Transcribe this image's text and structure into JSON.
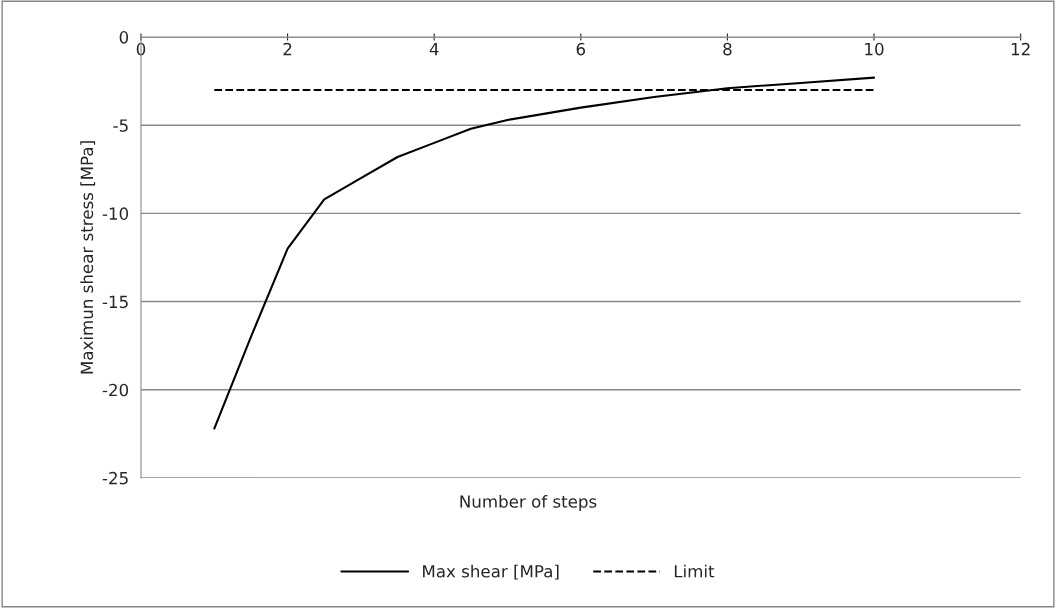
{
  "chart_data": {
    "type": "line",
    "xlabel": "Number of steps",
    "ylabel": "Maximun shear stress [MPa]",
    "xlim": [
      0,
      12
    ],
    "xticks": [
      0,
      2,
      4,
      6,
      8,
      10,
      12
    ],
    "ylim": [
      -25,
      0
    ],
    "yticks": [
      -25,
      -20,
      -15,
      -10,
      -5,
      0
    ],
    "grid": "y",
    "legend": "bottom",
    "marker": "none",
    "series": [
      {
        "name": "Max shear [MPa]",
        "color": "#000000",
        "line_style": "solid",
        "x": [
          1,
          1.5,
          2,
          2.5,
          3,
          3.5,
          4,
          4.5,
          5,
          6,
          7,
          8,
          9,
          10
        ],
        "values": [
          -22.2,
          -17,
          -12,
          -9.2,
          -8,
          -6.8,
          -6,
          -5.2,
          -4.7,
          -4,
          -3.4,
          -2.9,
          -2.6,
          -2.3
        ]
      },
      {
        "name": "Limit",
        "color": "#000000",
        "line_style": "dashed",
        "x": [
          1,
          10
        ],
        "values": [
          -3,
          -3
        ]
      }
    ]
  }
}
